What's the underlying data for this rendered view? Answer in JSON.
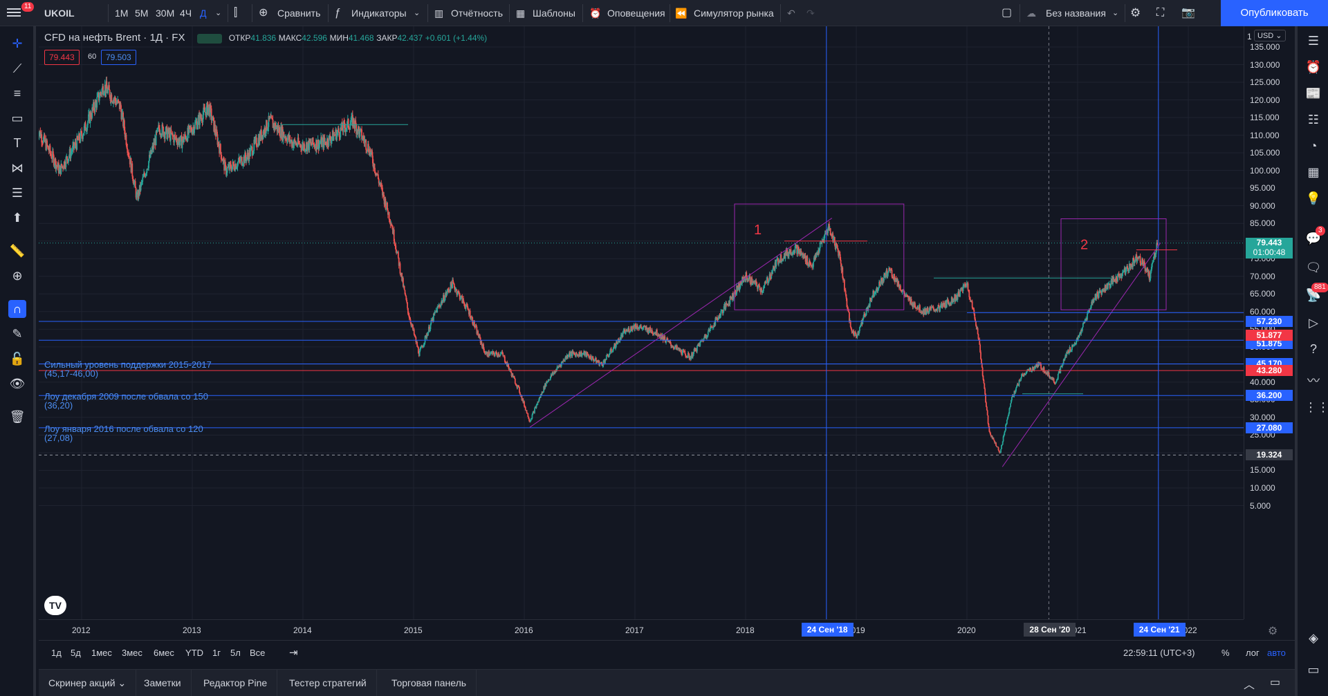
{
  "toolbar": {
    "menu_badge": "11",
    "symbol": "UKOIL",
    "timeframes": [
      "1М",
      "5М",
      "30М",
      "4Ч",
      "Д"
    ],
    "compare": "Сравнить",
    "indicators": "Индикаторы",
    "report": "Отчётность",
    "templates": "Шаблоны",
    "alerts": "Оповещения",
    "replay": "Симулятор рынка",
    "layout_name": "Без названия",
    "publish": "Опубликовать"
  },
  "legend": {
    "title": "CFD на нефть Brent · 1Д · FX",
    "open_label": "ОТКР",
    "open": "41.836",
    "high_label": "МАКС",
    "high": "42.596",
    "low_label": "МИН",
    "low": "41.468",
    "close_label": "ЗАКР",
    "close": "42.437",
    "change": "+0.601 (+1.44%)",
    "bid": "79.443",
    "spread": "60",
    "ask": "79.503"
  },
  "colors": {
    "bg": "#131722",
    "up": "#26a69a",
    "down": "#ef5350",
    "level": "#2962ff",
    "accent": "#2962ff"
  },
  "chart_data": {
    "type": "candlestick",
    "symbol": "UKOIL",
    "interval": "1D",
    "ylim": [
      5,
      140
    ],
    "ytick_values": [
      135,
      130,
      125,
      120,
      115,
      110,
      105,
      100,
      95,
      90,
      85,
      80,
      75,
      70,
      65,
      60,
      55,
      50,
      45,
      40,
      35,
      30,
      25,
      20,
      15,
      10,
      5
    ],
    "ytick_labels": [
      "135.000",
      "130.000",
      "125.000",
      "120.000",
      "115.000",
      "110.000",
      "105.000",
      "100.000",
      "95.000",
      "90.000",
      "85.000",
      "80.000",
      "75.000",
      "70.000",
      "65.000",
      "60.000",
      "55.000",
      "50.000",
      "45.000",
      "40.000",
      "35.000",
      "30.000",
      "25.000",
      "20.000",
      "15.000",
      "10.000",
      "5.000"
    ],
    "xlim": [
      2011.6,
      2022.5
    ],
    "xtick_values": [
      2012,
      2013,
      2014,
      2015,
      2016,
      2017,
      2018,
      2019,
      2020,
      2021,
      2022
    ],
    "xtick_labels": [
      "2012",
      "2013",
      "2014",
      "2015",
      "2016",
      "2017",
      "2018",
      "2019",
      "2020",
      "2021",
      "2022"
    ],
    "price_path": [
      [
        2011.6,
        112
      ],
      [
        2011.8,
        100
      ],
      [
        2012.0,
        110
      ],
      [
        2012.2,
        124
      ],
      [
        2012.35,
        118
      ],
      [
        2012.5,
        92
      ],
      [
        2012.7,
        112
      ],
      [
        2012.9,
        108
      ],
      [
        2013.0,
        112
      ],
      [
        2013.15,
        118
      ],
      [
        2013.3,
        100
      ],
      [
        2013.5,
        104
      ],
      [
        2013.7,
        114
      ],
      [
        2013.9,
        108
      ],
      [
        2014.0,
        107
      ],
      [
        2014.2,
        108
      ],
      [
        2014.45,
        114
      ],
      [
        2014.6,
        106
      ],
      [
        2014.8,
        85
      ],
      [
        2014.95,
        60
      ],
      [
        2015.05,
        48
      ],
      [
        2015.2,
        60
      ],
      [
        2015.35,
        68
      ],
      [
        2015.5,
        60
      ],
      [
        2015.65,
        48
      ],
      [
        2015.8,
        48
      ],
      [
        2015.95,
        38
      ],
      [
        2016.05,
        29
      ],
      [
        2016.2,
        40
      ],
      [
        2016.4,
        48
      ],
      [
        2016.55,
        48
      ],
      [
        2016.7,
        45
      ],
      [
        2016.9,
        54
      ],
      [
        2017.0,
        56
      ],
      [
        2017.2,
        54
      ],
      [
        2017.35,
        50
      ],
      [
        2017.5,
        47
      ],
      [
        2017.7,
        56
      ],
      [
        2017.85,
        63
      ],
      [
        2018.0,
        70
      ],
      [
        2018.15,
        66
      ],
      [
        2018.3,
        75
      ],
      [
        2018.45,
        78
      ],
      [
        2018.6,
        73
      ],
      [
        2018.75,
        84
      ],
      [
        2018.85,
        76
      ],
      [
        2018.95,
        55
      ],
      [
        2019.0,
        53
      ],
      [
        2019.15,
        65
      ],
      [
        2019.3,
        72
      ],
      [
        2019.45,
        64
      ],
      [
        2019.6,
        60
      ],
      [
        2019.75,
        61
      ],
      [
        2019.9,
        64
      ],
      [
        2020.0,
        68
      ],
      [
        2020.1,
        54
      ],
      [
        2020.2,
        26
      ],
      [
        2020.3,
        20
      ],
      [
        2020.4,
        35
      ],
      [
        2020.5,
        42
      ],
      [
        2020.65,
        45
      ],
      [
        2020.8,
        40
      ],
      [
        2020.9,
        48
      ],
      [
        2021.0,
        52
      ],
      [
        2021.15,
        64
      ],
      [
        2021.3,
        68
      ],
      [
        2021.45,
        72
      ],
      [
        2021.55,
        76
      ],
      [
        2021.65,
        70
      ],
      [
        2021.72,
        79.4
      ]
    ],
    "horizontal_levels": [
      {
        "price": 57.23,
        "label": "57.230",
        "color": "#2962ff"
      },
      {
        "price": 51.875,
        "label": "51.875",
        "color": "#2962ff"
      },
      {
        "price": 45.17,
        "label": "45.170",
        "color": "#2962ff"
      },
      {
        "price": 43.28,
        "label": "43.280",
        "color": "#f23645"
      },
      {
        "price": 36.2,
        "label": "36.200",
        "color": "#2962ff"
      },
      {
        "price": 27.08,
        "label": "27.080",
        "color": "#2962ff"
      }
    ],
    "extra_tags": [
      {
        "price": 51.877,
        "label": "51.877",
        "color": "#f23645"
      }
    ],
    "current_price": {
      "price": 79.443,
      "label": "79.443",
      "countdown": "01:00:48"
    },
    "crosshair_price": {
      "price": 19.324,
      "label": "19.324"
    },
    "annotations": [
      {
        "text1": "Сильный уровень поддержки 2015-2017",
        "text2": "(45,17-46,00)",
        "price": 44.2
      },
      {
        "text1": "Лоу декабря 2009 после обвала со 150",
        "text2": "(36,20)",
        "price": 35.2
      },
      {
        "text1": "Лоу января 2016 после обвала со 120",
        "text2": "(27,08)",
        "price": 26.1
      }
    ],
    "boxes": [
      {
        "label": "1",
        "x0": 2017.9,
        "x1": 2019.43,
        "y0": 60.5,
        "y1": 90.5
      },
      {
        "label": "2",
        "x0": 2020.85,
        "x1": 2021.8,
        "y0": 60.5,
        "y1": 86.3
      }
    ],
    "vertical_lines": [
      {
        "x": 2018.73,
        "label": "24 Сен '18",
        "color": "#2962ff"
      },
      {
        "x": 2020.74,
        "label": "28 Сен '20",
        "color": "#787b86"
      },
      {
        "x": 2021.73,
        "label": "24 Сен '21",
        "color": "#2962ff"
      }
    ],
    "price_axis_top": "1",
    "currency": "USD"
  },
  "rangebar": {
    "ranges": [
      "1д",
      "5д",
      "1мес",
      "3мес",
      "6мес",
      "YTD",
      "1г",
      "5л",
      "Все"
    ],
    "clock": "22:59:11 (UTC+3)",
    "percent": "%",
    "log": "лог",
    "auto": "авто"
  },
  "panels": [
    "Скринер акций",
    "Заметки",
    "Редактор Pine",
    "Тестер стратегий",
    "Торговая панель"
  ],
  "right_badges": {
    "chat": "3",
    "ideas": "881"
  }
}
